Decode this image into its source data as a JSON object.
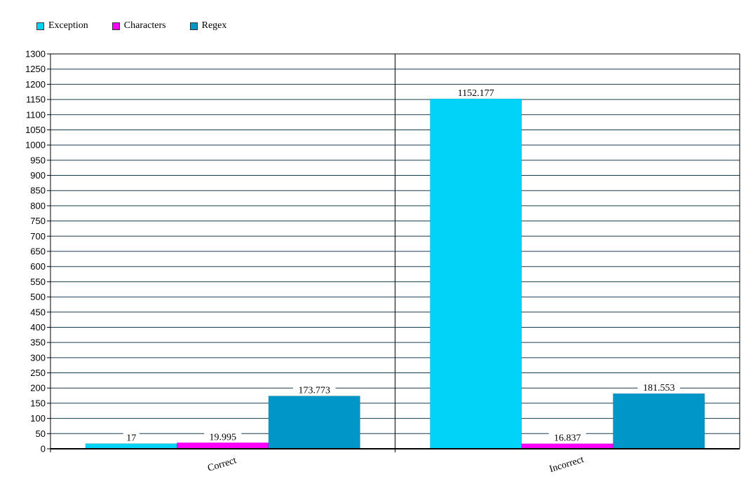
{
  "chart_data": {
    "type": "bar",
    "categories": [
      "Correct",
      "Incorrect"
    ],
    "series": [
      {
        "name": "Exception",
        "color": "#00d2f8",
        "values": [
          17,
          1152.177
        ],
        "labels": [
          "17",
          "1152.177"
        ]
      },
      {
        "name": "Characters",
        "color": "#ff00ff",
        "values": [
          19.995,
          16.837
        ],
        "labels": [
          "19.995",
          "16.837"
        ]
      },
      {
        "name": "Regex",
        "color": "#0096c8",
        "values": [
          173.773,
          181.553
        ],
        "labels": [
          "173.773",
          "181.553"
        ]
      }
    ],
    "yticks": [
      "0",
      "50",
      "100",
      "150",
      "200",
      "250",
      "300",
      "350",
      "400",
      "450",
      "500",
      "550",
      "600",
      "650",
      "700",
      "750",
      "800",
      "850",
      "900",
      "950",
      "1000",
      "1050",
      "1100",
      "1150",
      "1200",
      "1250",
      "1300"
    ],
    "ylim": [
      0,
      1300
    ],
    "ystep": 50,
    "grid": true,
    "legend": "top-left",
    "title": "",
    "xlabel": "",
    "ylabel": ""
  }
}
